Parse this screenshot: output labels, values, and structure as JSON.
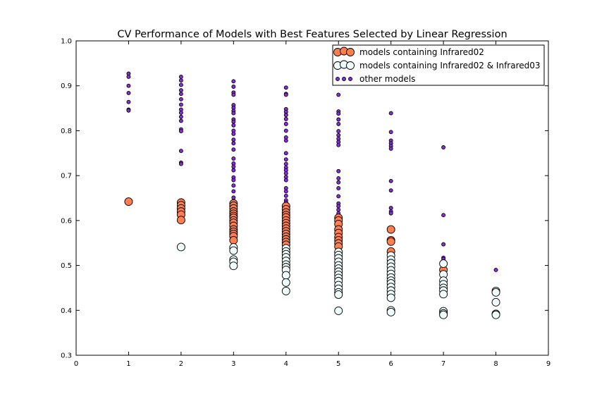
{
  "chart_data": {
    "type": "scatter",
    "title": "CV Performance of Models with Best Features Selected by Linear Regression",
    "xlabel": "",
    "ylabel": "",
    "xlim": [
      0,
      9
    ],
    "ylim": [
      0.3,
      1.0
    ],
    "xticks": [
      "0",
      "1",
      "2",
      "3",
      "4",
      "5",
      "6",
      "7",
      "8",
      "9"
    ],
    "yticks": [
      "0.3",
      "0.4",
      "0.5",
      "0.6",
      "0.7",
      "0.8",
      "0.9",
      "1.0"
    ],
    "grid": false,
    "legend_position": "top-right",
    "series": [
      {
        "name": "models containing Infrared02",
        "color": "#ff7f50",
        "marker": "large circle",
        "points": [
          [
            1,
            0.642
          ],
          [
            2,
            0.64
          ],
          [
            2,
            0.634
          ],
          [
            2,
            0.627
          ],
          [
            2,
            0.62
          ],
          [
            2,
            0.613
          ],
          [
            2,
            0.601
          ],
          [
            3,
            0.638
          ],
          [
            3,
            0.633
          ],
          [
            3,
            0.627
          ],
          [
            3,
            0.62
          ],
          [
            3,
            0.615
          ],
          [
            3,
            0.61
          ],
          [
            3,
            0.606
          ],
          [
            3,
            0.6
          ],
          [
            3,
            0.595
          ],
          [
            3,
            0.588
          ],
          [
            3,
            0.58
          ],
          [
            3,
            0.575
          ],
          [
            3,
            0.57
          ],
          [
            3,
            0.565
          ],
          [
            3,
            0.556
          ],
          [
            4,
            0.632
          ],
          [
            4,
            0.625
          ],
          [
            4,
            0.618
          ],
          [
            4,
            0.612
          ],
          [
            4,
            0.607
          ],
          [
            4,
            0.6
          ],
          [
            4,
            0.594
          ],
          [
            4,
            0.588
          ],
          [
            4,
            0.582
          ],
          [
            4,
            0.576
          ],
          [
            4,
            0.57
          ],
          [
            4,
            0.564
          ],
          [
            4,
            0.558
          ],
          [
            4,
            0.552
          ],
          [
            4,
            0.546
          ],
          [
            5,
            0.606
          ],
          [
            5,
            0.6
          ],
          [
            5,
            0.592
          ],
          [
            5,
            0.58
          ],
          [
            5,
            0.572
          ],
          [
            5,
            0.563
          ],
          [
            5,
            0.556
          ],
          [
            5,
            0.549
          ],
          [
            5,
            0.542
          ],
          [
            6,
            0.58
          ],
          [
            6,
            0.556
          ],
          [
            6,
            0.553
          ],
          [
            6,
            0.531
          ],
          [
            7,
            0.49
          ]
        ]
      },
      {
        "name": "models containing Infrared02 & Infrared03",
        "color": "#f0fffd",
        "marker": "large circle",
        "points": [
          [
            2,
            0.541
          ],
          [
            3,
            0.54
          ],
          [
            3,
            0.533
          ],
          [
            3,
            0.513
          ],
          [
            3,
            0.508
          ],
          [
            3,
            0.499
          ],
          [
            4,
            0.538
          ],
          [
            4,
            0.531
          ],
          [
            4,
            0.525
          ],
          [
            4,
            0.518
          ],
          [
            4,
            0.51
          ],
          [
            4,
            0.502
          ],
          [
            4,
            0.496
          ],
          [
            4,
            0.49
          ],
          [
            4,
            0.478
          ],
          [
            4,
            0.462
          ],
          [
            4,
            0.443
          ],
          [
            5,
            0.53
          ],
          [
            5,
            0.523
          ],
          [
            5,
            0.516
          ],
          [
            5,
            0.508
          ],
          [
            5,
            0.5
          ],
          [
            5,
            0.493
          ],
          [
            5,
            0.486
          ],
          [
            5,
            0.479
          ],
          [
            5,
            0.472
          ],
          [
            5,
            0.465
          ],
          [
            5,
            0.456
          ],
          [
            5,
            0.448
          ],
          [
            5,
            0.44
          ],
          [
            5,
            0.435
          ],
          [
            5,
            0.399
          ],
          [
            6,
            0.522
          ],
          [
            6,
            0.513
          ],
          [
            6,
            0.505
          ],
          [
            6,
            0.497
          ],
          [
            6,
            0.489
          ],
          [
            6,
            0.481
          ],
          [
            6,
            0.473
          ],
          [
            6,
            0.466
          ],
          [
            6,
            0.46
          ],
          [
            6,
            0.452
          ],
          [
            6,
            0.444
          ],
          [
            6,
            0.436
          ],
          [
            6,
            0.428
          ],
          [
            6,
            0.4
          ],
          [
            6,
            0.396
          ],
          [
            7,
            0.504
          ],
          [
            7,
            0.48
          ],
          [
            7,
            0.466
          ],
          [
            7,
            0.458
          ],
          [
            7,
            0.45
          ],
          [
            7,
            0.444
          ],
          [
            7,
            0.436
          ],
          [
            7,
            0.398
          ],
          [
            7,
            0.393
          ],
          [
            7,
            0.39
          ],
          [
            8,
            0.443
          ],
          [
            8,
            0.44
          ],
          [
            8,
            0.418
          ],
          [
            8,
            0.392
          ],
          [
            8,
            0.39
          ]
        ]
      },
      {
        "name": "other models",
        "color": "#8a2be2",
        "marker": "small circle",
        "points": [
          [
            1,
            0.927
          ],
          [
            1,
            0.92
          ],
          [
            1,
            0.9
          ],
          [
            1,
            0.884
          ],
          [
            1,
            0.864
          ],
          [
            1,
            0.847
          ],
          [
            1,
            0.845
          ],
          [
            2,
            0.92
          ],
          [
            2,
            0.912
          ],
          [
            2,
            0.902
          ],
          [
            2,
            0.89
          ],
          [
            2,
            0.882
          ],
          [
            2,
            0.87
          ],
          [
            2,
            0.858
          ],
          [
            2,
            0.847
          ],
          [
            2,
            0.84
          ],
          [
            2,
            0.831
          ],
          [
            2,
            0.822
          ],
          [
            2,
            0.803
          ],
          [
            2,
            0.799
          ],
          [
            2,
            0.755
          ],
          [
            2,
            0.729
          ],
          [
            2,
            0.726
          ],
          [
            3,
            0.91
          ],
          [
            3,
            0.898
          ],
          [
            3,
            0.885
          ],
          [
            3,
            0.88
          ],
          [
            3,
            0.857
          ],
          [
            3,
            0.851
          ],
          [
            3,
            0.844
          ],
          [
            3,
            0.839
          ],
          [
            3,
            0.825
          ],
          [
            3,
            0.82
          ],
          [
            3,
            0.812
          ],
          [
            3,
            0.8
          ],
          [
            3,
            0.793
          ],
          [
            3,
            0.78
          ],
          [
            3,
            0.772
          ],
          [
            3,
            0.758
          ],
          [
            3,
            0.738
          ],
          [
            3,
            0.727
          ],
          [
            3,
            0.72
          ],
          [
            3,
            0.712
          ],
          [
            3,
            0.696
          ],
          [
            3,
            0.69
          ],
          [
            3,
            0.678
          ],
          [
            3,
            0.665
          ],
          [
            3,
            0.651
          ],
          [
            3,
            0.643
          ],
          [
            3,
            0.64
          ],
          [
            4,
            0.896
          ],
          [
            4,
            0.882
          ],
          [
            4,
            0.88
          ],
          [
            4,
            0.848
          ],
          [
            4,
            0.842
          ],
          [
            4,
            0.835
          ],
          [
            4,
            0.826
          ],
          [
            4,
            0.815
          ],
          [
            4,
            0.8
          ],
          [
            4,
            0.785
          ],
          [
            4,
            0.778
          ],
          [
            4,
            0.75
          ],
          [
            4,
            0.736
          ],
          [
            4,
            0.726
          ],
          [
            4,
            0.718
          ],
          [
            4,
            0.712
          ],
          [
            4,
            0.705
          ],
          [
            4,
            0.697
          ],
          [
            4,
            0.69
          ],
          [
            4,
            0.672
          ],
          [
            4,
            0.665
          ],
          [
            4,
            0.655
          ],
          [
            4,
            0.645
          ],
          [
            4,
            0.64
          ],
          [
            5,
            0.88
          ],
          [
            5,
            0.843
          ],
          [
            5,
            0.838
          ],
          [
            5,
            0.825
          ],
          [
            5,
            0.815
          ],
          [
            5,
            0.799
          ],
          [
            5,
            0.79
          ],
          [
            5,
            0.782
          ],
          [
            5,
            0.775
          ],
          [
            5,
            0.768
          ],
          [
            5,
            0.71
          ],
          [
            5,
            0.694
          ],
          [
            5,
            0.685
          ],
          [
            5,
            0.672
          ],
          [
            5,
            0.654
          ],
          [
            5,
            0.638
          ],
          [
            5,
            0.632
          ],
          [
            5,
            0.624
          ],
          [
            5,
            0.616
          ],
          [
            5,
            0.61
          ],
          [
            6,
            0.839
          ],
          [
            6,
            0.797
          ],
          [
            6,
            0.778
          ],
          [
            6,
            0.772
          ],
          [
            6,
            0.766
          ],
          [
            6,
            0.76
          ],
          [
            6,
            0.688
          ],
          [
            6,
            0.667
          ],
          [
            6,
            0.628
          ],
          [
            6,
            0.62
          ],
          [
            6,
            0.616
          ],
          [
            7,
            0.763
          ],
          [
            7,
            0.612
          ],
          [
            7,
            0.547
          ],
          [
            7,
            0.517
          ],
          [
            7,
            0.514
          ],
          [
            8,
            0.49
          ]
        ]
      }
    ]
  }
}
